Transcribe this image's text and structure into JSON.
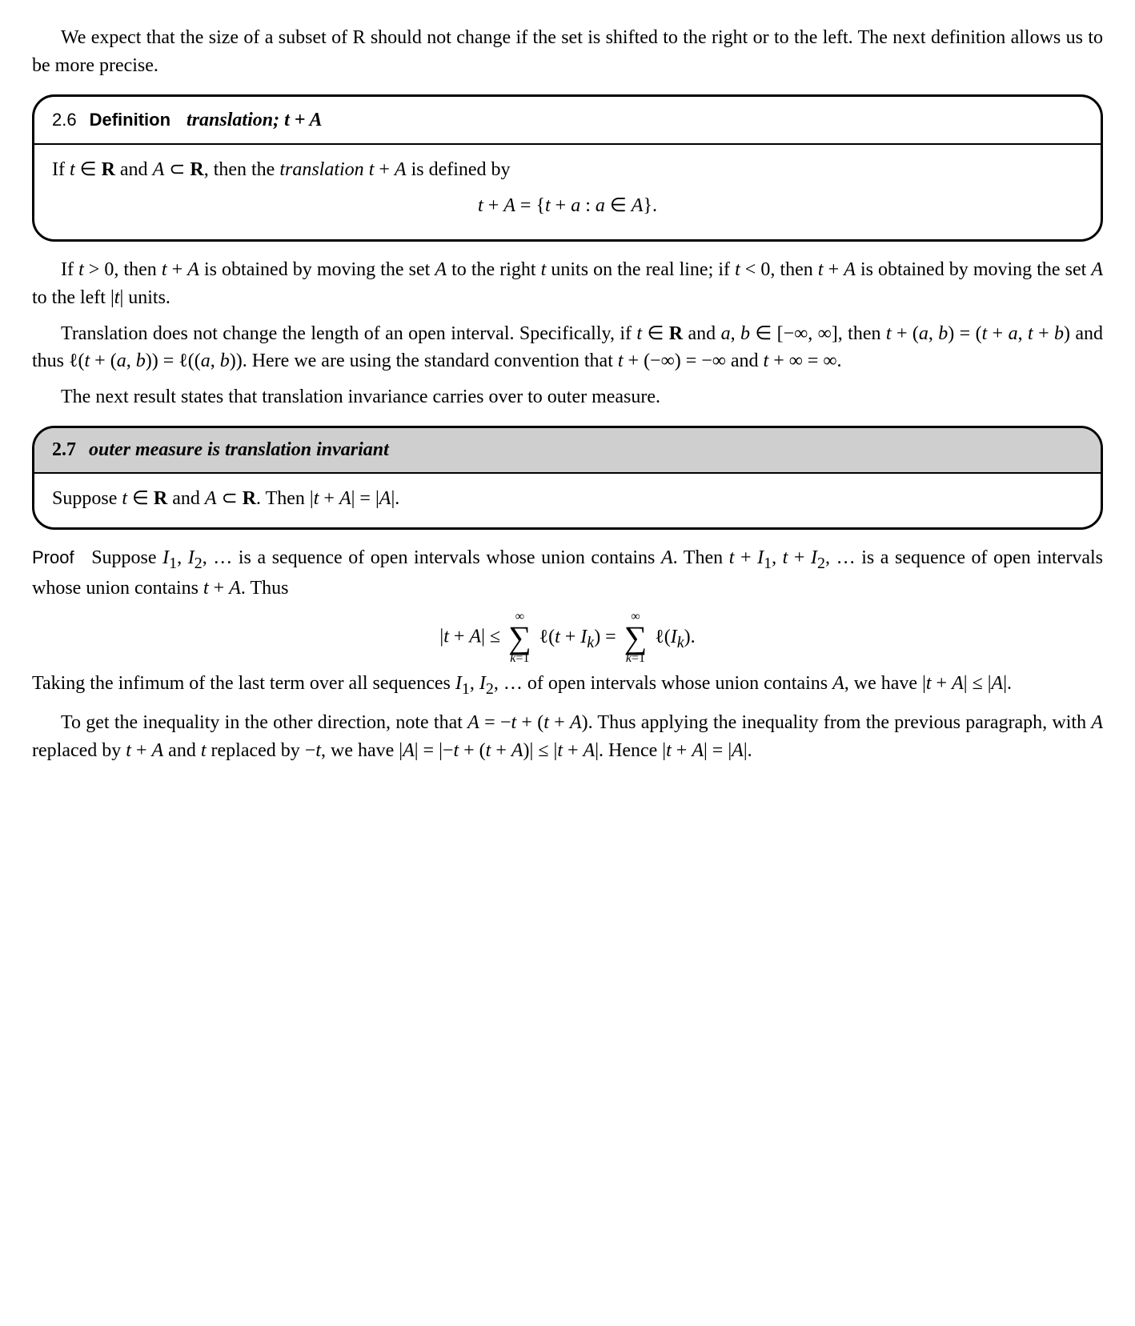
{
  "intro_para": "We expect that the size of a subset of R should not change if the set is shifted to the right or to the left. The next definition allows us to be more precise.",
  "box26": {
    "num": "2.6",
    "defword": "Definition",
    "title_html": "translation; <span style=\"font-style:italic\">t</span> + <span style=\"font-style:italic\">A</span>",
    "body_line": "If <i>t</i> ∈ <b>R</b> and <i>A</i> ⊂ <b>R</b>, then the <i>translation</i> <i>t</i> + <i>A</i> is defined by",
    "body_eq": "<i>t</i> + <i>A</i> = {<i>t</i> + <i>a</i> : <i>a</i> ∈ <i>A</i>}."
  },
  "mid_para1": "If <i>t</i> &gt; 0, then <i>t</i> + <i>A</i> is obtained by moving the set <i>A</i> to the right <i>t</i> units on the real line; if <i>t</i> &lt; 0, then <i>t</i> + <i>A</i> is obtained by moving the set <i>A</i> to the left |<i>t</i>| units.",
  "mid_para2": "Translation does not change the length of an open interval. Specifically, if <i>t</i> ∈ <b>R</b> and <i>a</i>, <i>b</i> ∈ [−∞, ∞], then <i>t</i> + (<i>a</i>, <i>b</i>) = (<i>t</i> + <i>a</i>, <i>t</i> + <i>b</i>) and thus ℓ(<i>t</i> + (<i>a</i>, <i>b</i>)) = ℓ((<i>a</i>, <i>b</i>)). Here we are using the standard convention that <i>t</i> + (−∞) = −∞ and <i>t</i> + ∞ = ∞.",
  "mid_para3": "The next result states that translation invariance carries over to outer measure.",
  "box27": {
    "num": "2.7",
    "title": "outer measure is translation invariant",
    "body": "Suppose <i>t</i> ∈ <b>R</b> and <i>A</i> ⊂ <b>R</b>. Then |<i>t</i> + <i>A</i>| = |<i>A</i>|."
  },
  "proof": {
    "label": "Proof",
    "para1": "Suppose <i>I</i><sub>1</sub>, <i>I</i><sub>2</sub>, … is a sequence of open intervals whose union contains <i>A</i>. Then <i>t</i> + <i>I</i><sub>1</sub>, <i>t</i> + <i>I</i><sub>2</sub>, … is a sequence of open intervals whose union contains <i>t</i> + <i>A</i>. Thus",
    "sum_top": "∞",
    "sum_bot": "<i>k</i>=1",
    "eq_left": "|<i>t</i> + <i>A</i>| ≤ ",
    "eq_term1": " ℓ(<i>t</i> + <i>I</i><sub><i>k</i></sub>) = ",
    "eq_term2": " ℓ(<i>I</i><sub><i>k</i></sub>).",
    "para2": "Taking the infimum of the last term over all sequences <i>I</i><sub>1</sub>, <i>I</i><sub>2</sub>, … of open intervals whose union contains <i>A</i>, we have |<i>t</i> + <i>A</i>| ≤ |<i>A</i>|.",
    "para3": "To get the inequality in the other direction, note that <i>A</i> = −<i>t</i> + (<i>t</i> + <i>A</i>). Thus applying the inequality from the previous paragraph, with <i>A</i> replaced by <i>t</i> + <i>A</i> and <i>t</i> replaced by −<i>t</i>, we have |<i>A</i>| = |−<i>t</i> + (<i>t</i> + <i>A</i>)| ≤ |<i>t</i> + <i>A</i>|. Hence |<i>t</i> + <i>A</i>| = |<i>A</i>|."
  }
}
